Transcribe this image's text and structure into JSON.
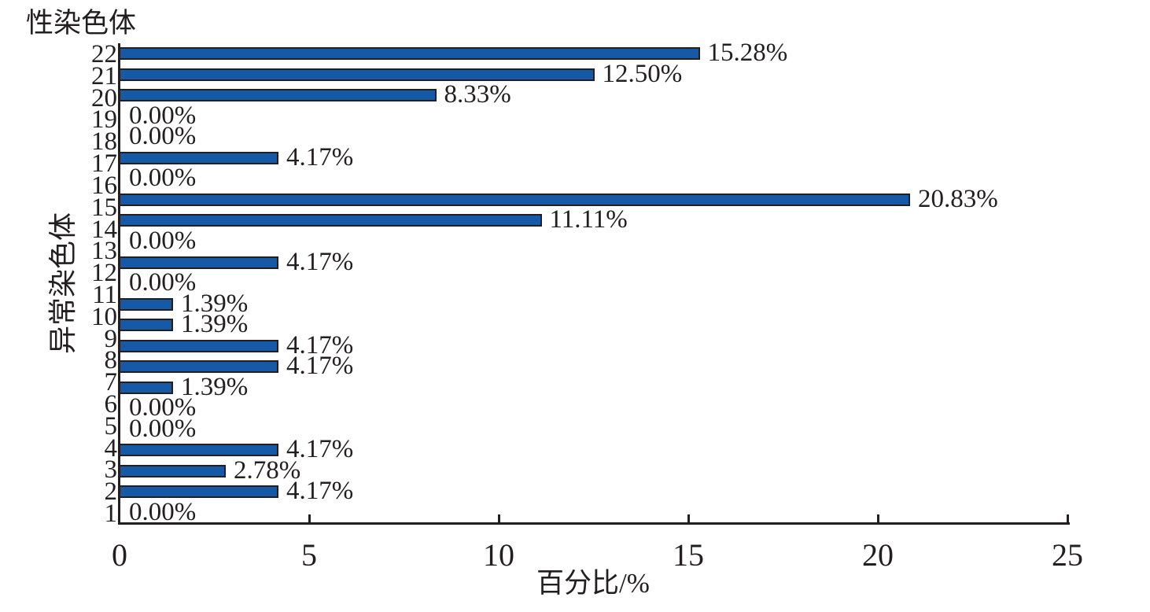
{
  "figure": {
    "background": "#ffffff",
    "ink_color": "#231f20"
  },
  "chart_data": {
    "type": "bar",
    "orientation": "horizontal",
    "top_annotation": "性染色体",
    "ylabel": "异常染色体",
    "xlabel": "百分比/%",
    "xlim": [
      0,
      25
    ],
    "xticks": [
      "0",
      "5",
      "10",
      "15",
      "20",
      "25"
    ],
    "grid": false,
    "legend_position": "none",
    "bar_color": "#1659a7",
    "bar_border_color": "#231f20",
    "categories": [
      "性染色体",
      "22",
      "21",
      "20",
      "19",
      "18",
      "17",
      "16",
      "15",
      "14",
      "13",
      "12",
      "11",
      "10",
      "9",
      "8",
      "7",
      "6",
      "5",
      "4",
      "3",
      "2",
      "1"
    ],
    "values": [
      15.28,
      12.5,
      8.33,
      0.0,
      0.0,
      4.17,
      0.0,
      20.83,
      11.11,
      0.0,
      4.17,
      0.0,
      1.39,
      1.39,
      4.17,
      4.17,
      1.39,
      0.0,
      0.0,
      4.17,
      2.78,
      4.17,
      0.0
    ],
    "value_labels": [
      "15.28%",
      "12.50%",
      "8.33%",
      "0.00%",
      "0.00%",
      "4.17%",
      "0.00%",
      "20.83%",
      "11.11%",
      "0.00%",
      "4.17%",
      "0.00%",
      "1.39%",
      "1.39%",
      "4.17%",
      "4.17%",
      "1.39%",
      "0.00%",
      "0.00%",
      "4.17%",
      "2.78%",
      "4.17%",
      "0.00%"
    ]
  }
}
